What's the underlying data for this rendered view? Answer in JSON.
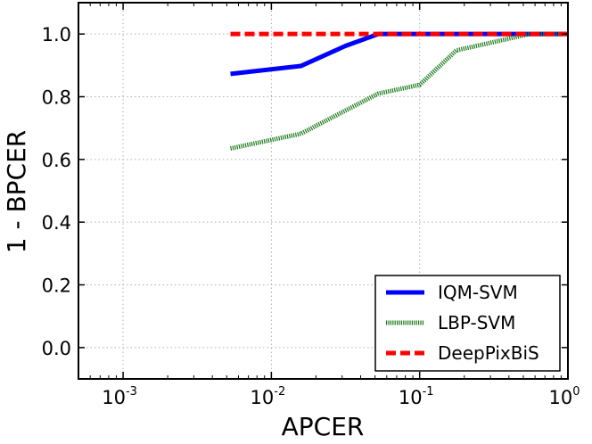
{
  "chart_data": {
    "type": "line",
    "title": "",
    "xlabel": "APCER",
    "ylabel": "1 - BPCER",
    "xscale": "log",
    "xlim": [
      0.0005,
      1.0
    ],
    "ylim": [
      -0.1,
      1.1
    ],
    "grid": true,
    "legend_position": "bottom-right",
    "x_ticks": [
      {
        "value": 0.001,
        "base": "10",
        "exp": "-3"
      },
      {
        "value": 0.01,
        "base": "10",
        "exp": "-2"
      },
      {
        "value": 0.1,
        "base": "10",
        "exp": "-1"
      },
      {
        "value": 1.0,
        "base": "10",
        "exp": "0"
      }
    ],
    "y_ticks": [
      {
        "value": 0.0,
        "label": "0.0"
      },
      {
        "value": 0.2,
        "label": "0.2"
      },
      {
        "value": 0.4,
        "label": "0.4"
      },
      {
        "value": 0.6,
        "label": "0.6"
      },
      {
        "value": 0.8,
        "label": "0.8"
      },
      {
        "value": 1.0,
        "label": "1.0"
      }
    ],
    "series": [
      {
        "name": "IQM-SVM",
        "color": "#0000ff",
        "style": "solid",
        "x": [
          0.0053,
          0.0158,
          0.0316,
          0.0526,
          0.1,
          1.0
        ],
        "y": [
          0.873,
          0.898,
          0.962,
          1.0,
          1.0,
          1.0
        ]
      },
      {
        "name": "LBP-SVM",
        "color": "#1a7a1a",
        "style": "dotted",
        "x": [
          0.0053,
          0.0158,
          0.0316,
          0.0526,
          0.1,
          0.177,
          0.3,
          0.55,
          1.0
        ],
        "y": [
          0.635,
          0.682,
          0.756,
          0.81,
          0.838,
          0.948,
          0.972,
          1.0,
          1.0
        ]
      },
      {
        "name": "DeepPixBiS",
        "color": "#ff0000",
        "style": "dashed",
        "x": [
          0.0053,
          1.0
        ],
        "y": [
          1.0,
          1.0
        ]
      }
    ]
  }
}
